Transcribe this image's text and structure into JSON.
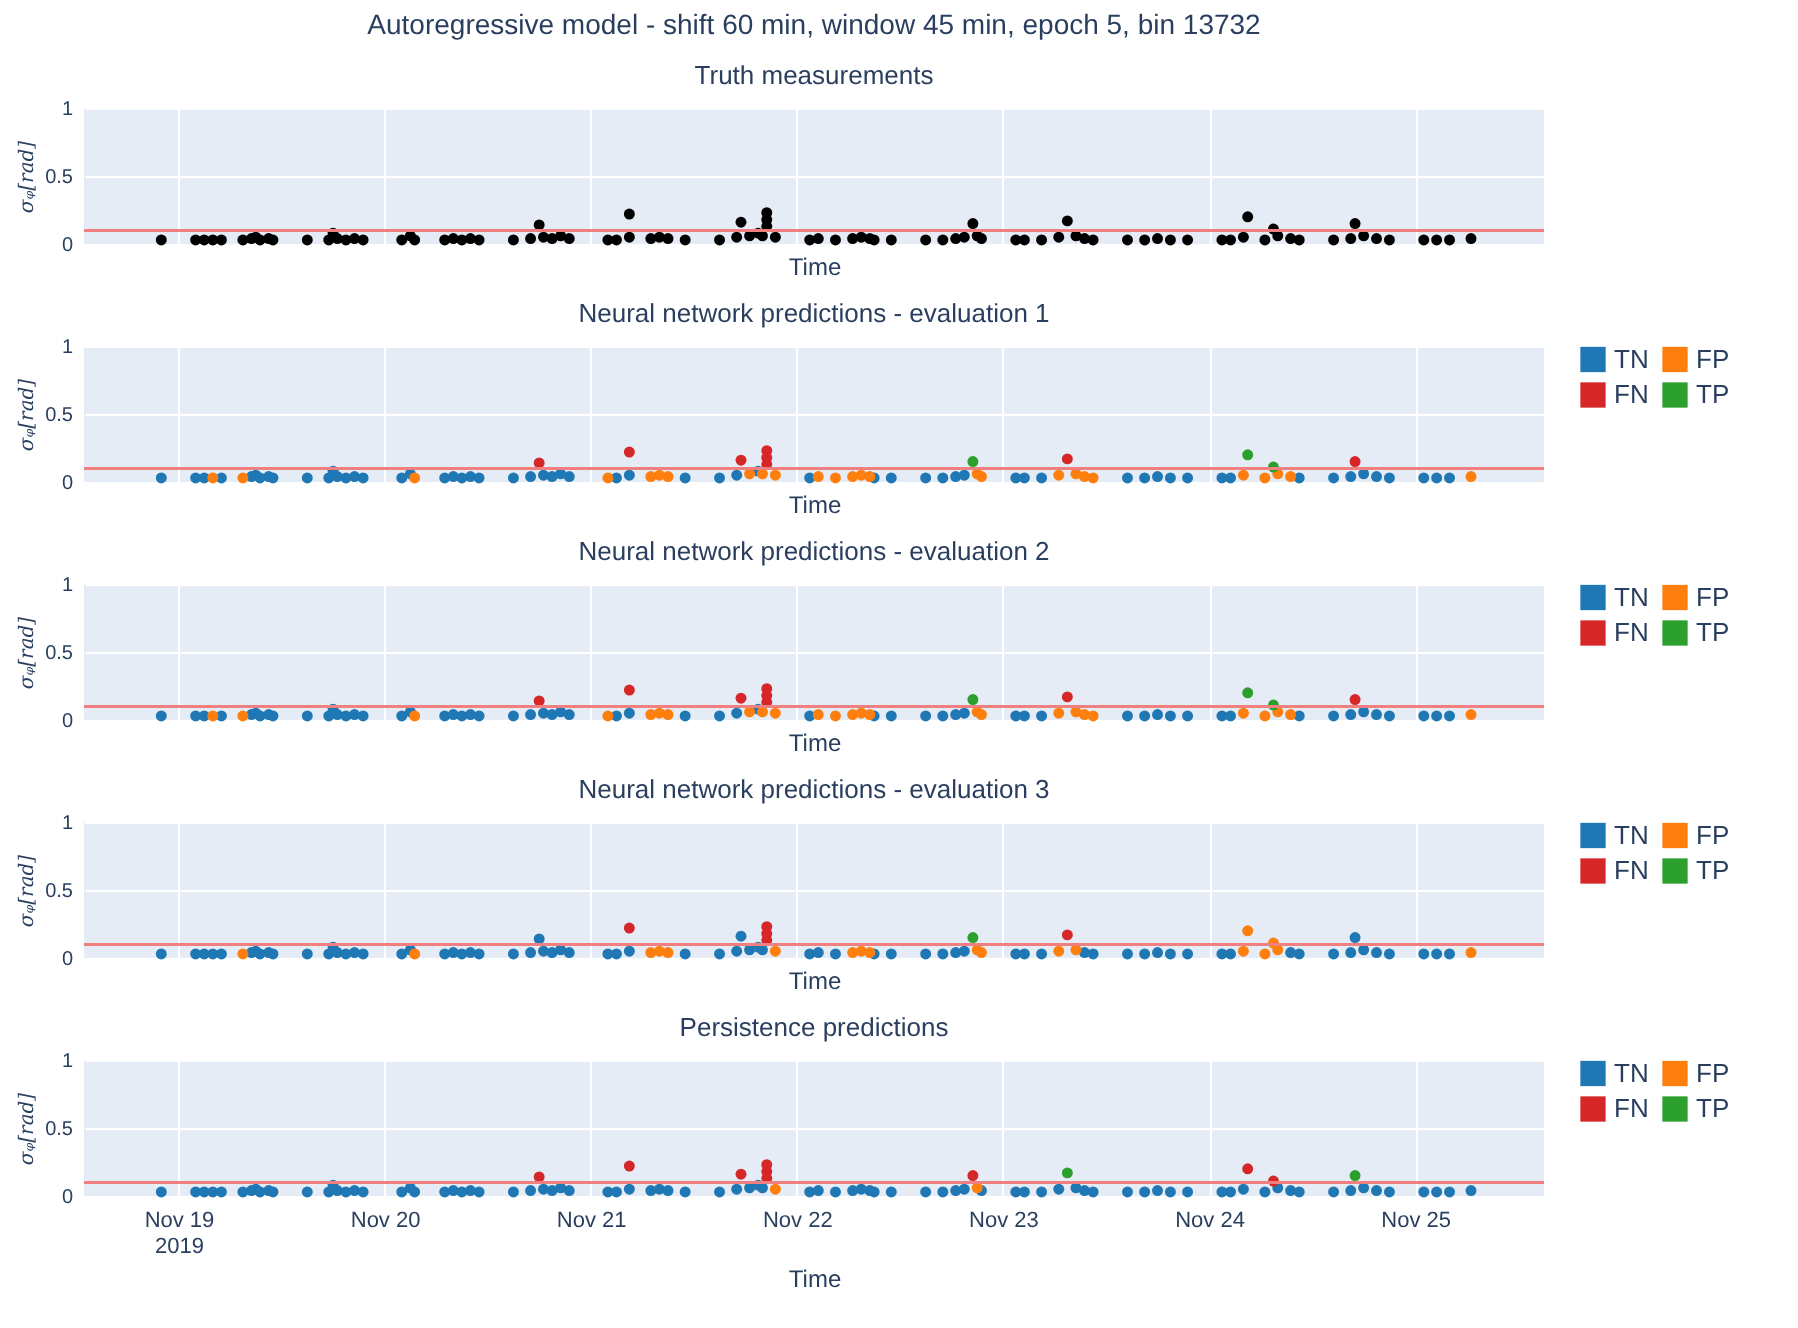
{
  "chart_data": [
    {
      "type": "scatter",
      "title": "Truth measurements",
      "annotations": [
        "Autoregressive model - shift 60 min, window 45 min, epoch 5, bin 13732"
      ],
      "xlabel": "Time",
      "ylabel": "σᵩ[rad]",
      "xlim": [
        "2019-11-18T13:00",
        "2019-11-25T15:00"
      ],
      "xticks": [
        {
          "value": "2019-11-19",
          "label": null
        },
        {
          "value": "2019-11-20",
          "label": null
        },
        {
          "value": "2019-11-21",
          "label": null
        },
        {
          "value": "2019-11-22",
          "label": null
        },
        {
          "value": "2019-11-23",
          "label": null
        },
        {
          "value": "2019-11-24",
          "label": null
        },
        {
          "value": "2019-11-25",
          "label": null
        }
      ],
      "ylim": [
        0,
        1
      ],
      "yticks": [
        0,
        0.5,
        1
      ],
      "grid": true,
      "marker": "circle",
      "tick_labels": "y",
      "ref_lines": [
        {
          "axis": "y",
          "value": 0.1,
          "color": "#f08080"
        }
      ],
      "series": [
        {
          "color": "#000000",
          "x": [
            "2019-11-18T22:00",
            "2019-11-19T02:00",
            "2019-11-19T03:00",
            "2019-11-19T04:00",
            "2019-11-19T05:00",
            "2019-11-19T07:30",
            "2019-11-19T08:30",
            "2019-11-19T09:00",
            "2019-11-19T09:30",
            "2019-11-19T10:30",
            "2019-11-19T11:00",
            "2019-11-19T15:00",
            "2019-11-19T17:30",
            "2019-11-19T18:00",
            "2019-11-19T18:30",
            "2019-11-19T19:30",
            "2019-11-19T20:30",
            "2019-11-19T21:30",
            "2019-11-20T02:00",
            "2019-11-20T03:00",
            "2019-11-20T03:30",
            "2019-11-20T07:00",
            "2019-11-20T08:00",
            "2019-11-20T09:00",
            "2019-11-20T10:00",
            "2019-11-20T11:00",
            "2019-11-20T15:00",
            "2019-11-20T17:00",
            "2019-11-20T18:00",
            "2019-11-20T18:30",
            "2019-11-20T19:30",
            "2019-11-20T20:30",
            "2019-11-20T21:30",
            "2019-11-21T02:00",
            "2019-11-21T03:00",
            "2019-11-21T04:30",
            "2019-11-21T04:30",
            "2019-11-21T07:00",
            "2019-11-21T08:00",
            "2019-11-21T09:00",
            "2019-11-21T11:00",
            "2019-11-21T15:00",
            "2019-11-21T17:00",
            "2019-11-21T17:30",
            "2019-11-21T18:30",
            "2019-11-21T19:30",
            "2019-11-21T20:00",
            "2019-11-21T20:30",
            "2019-11-21T20:30",
            "2019-11-21T20:30",
            "2019-11-21T21:30",
            "2019-11-22T01:30",
            "2019-11-22T02:30",
            "2019-11-22T04:30",
            "2019-11-22T06:30",
            "2019-11-22T07:30",
            "2019-11-22T08:30",
            "2019-11-22T09:00",
            "2019-11-22T11:00",
            "2019-11-22T15:00",
            "2019-11-22T17:00",
            "2019-11-22T18:30",
            "2019-11-22T19:30",
            "2019-11-22T20:30",
            "2019-11-22T21:00",
            "2019-11-22T21:30",
            "2019-11-23T01:30",
            "2019-11-23T02:30",
            "2019-11-23T04:30",
            "2019-11-23T06:30",
            "2019-11-23T07:30",
            "2019-11-23T08:30",
            "2019-11-23T09:30",
            "2019-11-23T10:30",
            "2019-11-23T14:30",
            "2019-11-23T16:30",
            "2019-11-23T18:00",
            "2019-11-23T19:30",
            "2019-11-23T21:30",
            "2019-11-24T01:30",
            "2019-11-24T02:30",
            "2019-11-24T04:00",
            "2019-11-24T04:30",
            "2019-11-24T06:30",
            "2019-11-24T07:30",
            "2019-11-24T08:00",
            "2019-11-24T09:30",
            "2019-11-24T10:30",
            "2019-11-24T14:30",
            "2019-11-24T16:30",
            "2019-11-24T17:00",
            "2019-11-24T18:00",
            "2019-11-24T19:30",
            "2019-11-24T21:00",
            "2019-11-25T01:00",
            "2019-11-25T02:30",
            "2019-11-25T04:00",
            "2019-11-25T06:30"
          ],
          "values": [
            0.03,
            0.03,
            0.03,
            0.03,
            0.03,
            0.03,
            0.04,
            0.05,
            0.03,
            0.04,
            0.03,
            0.03,
            0.03,
            0.08,
            0.04,
            0.03,
            0.04,
            0.03,
            0.03,
            0.06,
            0.03,
            0.03,
            0.04,
            0.03,
            0.04,
            0.03,
            0.03,
            0.04,
            0.14,
            0.05,
            0.04,
            0.06,
            0.04,
            0.03,
            0.03,
            0.22,
            0.05,
            0.04,
            0.05,
            0.04,
            0.03,
            0.03,
            0.05,
            0.16,
            0.06,
            0.08,
            0.06,
            0.13,
            0.18,
            0.23,
            0.05,
            0.03,
            0.04,
            0.03,
            0.04,
            0.05,
            0.04,
            0.03,
            0.03,
            0.03,
            0.03,
            0.04,
            0.05,
            0.15,
            0.06,
            0.04,
            0.03,
            0.03,
            0.03,
            0.05,
            0.17,
            0.06,
            0.04,
            0.03,
            0.03,
            0.03,
            0.04,
            0.03,
            0.03,
            0.03,
            0.03,
            0.05,
            0.2,
            0.03,
            0.11,
            0.06,
            0.04,
            0.03,
            0.03,
            0.04,
            0.15,
            0.06,
            0.04,
            0.03,
            0.03,
            0.03,
            0.03,
            0.04
          ]
        }
      ]
    },
    {
      "type": "scatter",
      "title": "Neural network predictions - evaluation 1",
      "xlabel": "Time",
      "ylabel": "σᵩ[rad]",
      "xlim": [
        "2019-11-18T13:00",
        "2019-11-25T15:00"
      ],
      "xticks": [
        {
          "value": "2019-11-19",
          "label": null
        },
        {
          "value": "2019-11-20",
          "label": null
        },
        {
          "value": "2019-11-21",
          "label": null
        },
        {
          "value": "2019-11-22",
          "label": null
        },
        {
          "value": "2019-11-23",
          "label": null
        },
        {
          "value": "2019-11-24",
          "label": null
        },
        {
          "value": "2019-11-25",
          "label": null
        }
      ],
      "ylim": [
        0,
        1
      ],
      "yticks": [
        0,
        0.5,
        1
      ],
      "grid": true,
      "marker": "circle",
      "tick_labels": "y",
      "legend": "top right",
      "ref_lines": [
        {
          "axis": "y",
          "value": 0.1,
          "color": "#f08080"
        }
      ],
      "series": [
        {
          "name": "TN",
          "color": "#1f77b4",
          "x": [
            "2019-11-18T22:00",
            "2019-11-19T02:00",
            "2019-11-19T03:00",
            "2019-11-19T05:00",
            "2019-11-19T08:30",
            "2019-11-19T09:00",
            "2019-11-19T09:30",
            "2019-11-19T10:30",
            "2019-11-19T11:00",
            "2019-11-19T15:00",
            "2019-11-19T17:30",
            "2019-11-19T18:00",
            "2019-11-19T18:30",
            "2019-11-19T19:30",
            "2019-11-19T20:30",
            "2019-11-19T21:30",
            "2019-11-20T02:00",
            "2019-11-20T03:00",
            "2019-11-20T07:00",
            "2019-11-20T08:00",
            "2019-11-20T09:00",
            "2019-11-20T10:00",
            "2019-11-20T11:00",
            "2019-11-20T15:00",
            "2019-11-20T17:00",
            "2019-11-20T18:30",
            "2019-11-20T19:30",
            "2019-11-20T20:30",
            "2019-11-20T21:30",
            "2019-11-21T03:00",
            "2019-11-21T04:30",
            "2019-11-21T11:00",
            "2019-11-21T15:00",
            "2019-11-21T17:00",
            "2019-11-21T19:30",
            "2019-11-22T01:30",
            "2019-11-22T09:00",
            "2019-11-22T11:00",
            "2019-11-22T15:00",
            "2019-11-22T17:00",
            "2019-11-22T18:30",
            "2019-11-22T19:30",
            "2019-11-23T01:30",
            "2019-11-23T02:30",
            "2019-11-23T04:30",
            "2019-11-23T14:30",
            "2019-11-23T16:30",
            "2019-11-23T18:00",
            "2019-11-23T19:30",
            "2019-11-23T21:30",
            "2019-11-24T01:30",
            "2019-11-24T02:30",
            "2019-11-24T10:30",
            "2019-11-24T14:30",
            "2019-11-24T16:30",
            "2019-11-24T18:00",
            "2019-11-24T19:30",
            "2019-11-24T21:00",
            "2019-11-25T01:00",
            "2019-11-25T02:30",
            "2019-11-25T04:00"
          ],
          "values": [
            0.03,
            0.03,
            0.03,
            0.03,
            0.04,
            0.05,
            0.03,
            0.04,
            0.03,
            0.03,
            0.03,
            0.08,
            0.04,
            0.03,
            0.04,
            0.03,
            0.03,
            0.06,
            0.03,
            0.04,
            0.03,
            0.04,
            0.03,
            0.03,
            0.04,
            0.05,
            0.04,
            0.06,
            0.04,
            0.03,
            0.05,
            0.03,
            0.03,
            0.05,
            0.08,
            0.03,
            0.03,
            0.03,
            0.03,
            0.03,
            0.04,
            0.05,
            0.03,
            0.03,
            0.03,
            0.03,
            0.03,
            0.04,
            0.03,
            0.03,
            0.03,
            0.03,
            0.03,
            0.03,
            0.04,
            0.06,
            0.04,
            0.03,
            0.03,
            0.03,
            0.03
          ]
        },
        {
          "name": "FP",
          "color": "#ff7f0e",
          "x": [
            "2019-11-19T04:00",
            "2019-11-19T07:30",
            "2019-11-20T03:30",
            "2019-11-21T02:00",
            "2019-11-21T07:00",
            "2019-11-21T08:00",
            "2019-11-21T09:00",
            "2019-11-21T18:30",
            "2019-11-21T20:00",
            "2019-11-21T21:30",
            "2019-11-22T02:30",
            "2019-11-22T04:30",
            "2019-11-22T06:30",
            "2019-11-22T07:30",
            "2019-11-22T08:30",
            "2019-11-22T21:00",
            "2019-11-22T21:30",
            "2019-11-23T06:30",
            "2019-11-23T08:30",
            "2019-11-23T09:30",
            "2019-11-23T10:30",
            "2019-11-24T04:00",
            "2019-11-24T06:30",
            "2019-11-24T08:00",
            "2019-11-24T09:30",
            "2019-11-25T06:30"
          ],
          "values": [
            0.03,
            0.03,
            0.03,
            0.03,
            0.04,
            0.05,
            0.04,
            0.06,
            0.06,
            0.05,
            0.04,
            0.03,
            0.04,
            0.05,
            0.04,
            0.06,
            0.04,
            0.05,
            0.06,
            0.04,
            0.03,
            0.05,
            0.03,
            0.06,
            0.04,
            0.04
          ]
        },
        {
          "name": "FN",
          "color": "#d62728",
          "x": [
            "2019-11-20T18:00",
            "2019-11-21T04:30",
            "2019-11-21T17:30",
            "2019-11-21T20:30",
            "2019-11-21T20:30",
            "2019-11-21T20:30",
            "2019-11-23T07:30",
            "2019-11-24T17:00"
          ],
          "values": [
            0.14,
            0.22,
            0.16,
            0.13,
            0.18,
            0.23,
            0.17,
            0.15
          ]
        },
        {
          "name": "TP",
          "color": "#2ca02c",
          "x": [
            "2019-11-22T20:30",
            "2019-11-24T04:30",
            "2019-11-24T07:30"
          ],
          "values": [
            0.15,
            0.2,
            0.11
          ]
        }
      ]
    },
    {
      "type": "scatter",
      "title": "Neural network predictions - evaluation 2",
      "xlabel": "Time",
      "ylabel": "σᵩ[rad]",
      "xlim": [
        "2019-11-18T13:00",
        "2019-11-25T15:00"
      ],
      "xticks": [
        {
          "value": "2019-11-19",
          "label": null
        },
        {
          "value": "2019-11-20",
          "label": null
        },
        {
          "value": "2019-11-21",
          "label": null
        },
        {
          "value": "2019-11-22",
          "label": null
        },
        {
          "value": "2019-11-23",
          "label": null
        },
        {
          "value": "2019-11-24",
          "label": null
        },
        {
          "value": "2019-11-25",
          "label": null
        }
      ],
      "ylim": [
        0,
        1
      ],
      "yticks": [
        0,
        0.5,
        1
      ],
      "grid": true,
      "marker": "circle",
      "tick_labels": "y",
      "legend": "top right",
      "ref_lines": [
        {
          "axis": "y",
          "value": 0.1,
          "color": "#f08080"
        }
      ],
      "series": [
        {
          "name": "TN",
          "color": "#1f77b4",
          "x": [
            "2019-11-18T22:00",
            "2019-11-19T02:00",
            "2019-11-19T03:00",
            "2019-11-19T05:00",
            "2019-11-19T08:30",
            "2019-11-19T09:00",
            "2019-11-19T09:30",
            "2019-11-19T10:30",
            "2019-11-19T11:00",
            "2019-11-19T15:00",
            "2019-11-19T17:30",
            "2019-11-19T18:00",
            "2019-11-19T18:30",
            "2019-11-19T19:30",
            "2019-11-19T20:30",
            "2019-11-19T21:30",
            "2019-11-20T02:00",
            "2019-11-20T03:00",
            "2019-11-20T07:00",
            "2019-11-20T08:00",
            "2019-11-20T09:00",
            "2019-11-20T10:00",
            "2019-11-20T11:00",
            "2019-11-20T15:00",
            "2019-11-20T17:00",
            "2019-11-20T18:30",
            "2019-11-20T19:30",
            "2019-11-20T20:30",
            "2019-11-20T21:30",
            "2019-11-21T03:00",
            "2019-11-21T04:30",
            "2019-11-21T11:00",
            "2019-11-21T15:00",
            "2019-11-21T17:00",
            "2019-11-21T19:30",
            "2019-11-22T01:30",
            "2019-11-22T09:00",
            "2019-11-22T11:00",
            "2019-11-22T15:00",
            "2019-11-22T17:00",
            "2019-11-22T18:30",
            "2019-11-22T19:30",
            "2019-11-23T01:30",
            "2019-11-23T02:30",
            "2019-11-23T04:30",
            "2019-11-23T14:30",
            "2019-11-23T16:30",
            "2019-11-23T18:00",
            "2019-11-23T19:30",
            "2019-11-23T21:30",
            "2019-11-24T01:30",
            "2019-11-24T02:30",
            "2019-11-24T10:30",
            "2019-11-24T14:30",
            "2019-11-24T16:30",
            "2019-11-24T18:00",
            "2019-11-24T19:30",
            "2019-11-24T21:00",
            "2019-11-25T01:00",
            "2019-11-25T02:30",
            "2019-11-25T04:00"
          ],
          "values": [
            0.03,
            0.03,
            0.03,
            0.03,
            0.04,
            0.05,
            0.03,
            0.04,
            0.03,
            0.03,
            0.03,
            0.08,
            0.04,
            0.03,
            0.04,
            0.03,
            0.03,
            0.06,
            0.03,
            0.04,
            0.03,
            0.04,
            0.03,
            0.03,
            0.04,
            0.05,
            0.04,
            0.06,
            0.04,
            0.03,
            0.05,
            0.03,
            0.03,
            0.05,
            0.08,
            0.03,
            0.03,
            0.03,
            0.03,
            0.03,
            0.04,
            0.05,
            0.03,
            0.03,
            0.03,
            0.03,
            0.03,
            0.04,
            0.03,
            0.03,
            0.03,
            0.03,
            0.03,
            0.03,
            0.04,
            0.06,
            0.04,
            0.03,
            0.03,
            0.03,
            0.03
          ]
        },
        {
          "name": "FP",
          "color": "#ff7f0e",
          "x": [
            "2019-11-19T04:00",
            "2019-11-19T07:30",
            "2019-11-20T03:30",
            "2019-11-21T02:00",
            "2019-11-21T07:00",
            "2019-11-21T08:00",
            "2019-11-21T09:00",
            "2019-11-21T18:30",
            "2019-11-21T20:00",
            "2019-11-21T21:30",
            "2019-11-22T02:30",
            "2019-11-22T04:30",
            "2019-11-22T06:30",
            "2019-11-22T07:30",
            "2019-11-22T08:30",
            "2019-11-22T21:00",
            "2019-11-22T21:30",
            "2019-11-23T06:30",
            "2019-11-23T08:30",
            "2019-11-23T09:30",
            "2019-11-23T10:30",
            "2019-11-24T04:00",
            "2019-11-24T06:30",
            "2019-11-24T08:00",
            "2019-11-24T09:30",
            "2019-11-25T06:30"
          ],
          "values": [
            0.03,
            0.03,
            0.03,
            0.03,
            0.04,
            0.05,
            0.04,
            0.06,
            0.06,
            0.05,
            0.04,
            0.03,
            0.04,
            0.05,
            0.04,
            0.06,
            0.04,
            0.05,
            0.06,
            0.04,
            0.03,
            0.05,
            0.03,
            0.06,
            0.04,
            0.04
          ]
        },
        {
          "name": "FN",
          "color": "#d62728",
          "x": [
            "2019-11-20T18:00",
            "2019-11-21T04:30",
            "2019-11-21T17:30",
            "2019-11-21T20:30",
            "2019-11-21T20:30",
            "2019-11-21T20:30",
            "2019-11-23T07:30",
            "2019-11-24T17:00"
          ],
          "values": [
            0.14,
            0.22,
            0.16,
            0.13,
            0.18,
            0.23,
            0.17,
            0.15
          ]
        },
        {
          "name": "TP",
          "color": "#2ca02c",
          "x": [
            "2019-11-22T20:30",
            "2019-11-24T04:30",
            "2019-11-24T07:30"
          ],
          "values": [
            0.15,
            0.2,
            0.11
          ]
        }
      ]
    },
    {
      "type": "scatter",
      "title": "Neural network predictions - evaluation 3",
      "xlabel": "Time",
      "ylabel": "σᵩ[rad]",
      "xlim": [
        "2019-11-18T13:00",
        "2019-11-25T15:00"
      ],
      "xticks": [
        {
          "value": "2019-11-19",
          "label": null
        },
        {
          "value": "2019-11-20",
          "label": null
        },
        {
          "value": "2019-11-21",
          "label": null
        },
        {
          "value": "2019-11-22",
          "label": null
        },
        {
          "value": "2019-11-23",
          "label": null
        },
        {
          "value": "2019-11-24",
          "label": null
        },
        {
          "value": "2019-11-25",
          "label": null
        }
      ],
      "ylim": [
        0,
        1
      ],
      "yticks": [
        0,
        0.5,
        1
      ],
      "grid": true,
      "marker": "circle",
      "tick_labels": "y",
      "legend": "top right",
      "ref_lines": [
        {
          "axis": "y",
          "value": 0.1,
          "color": "#f08080"
        }
      ],
      "series": [
        {
          "name": "TN",
          "color": "#1f77b4",
          "x": [
            "2019-11-18T22:00",
            "2019-11-19T02:00",
            "2019-11-19T03:00",
            "2019-11-19T04:00",
            "2019-11-19T05:00",
            "2019-11-19T08:30",
            "2019-11-19T09:00",
            "2019-11-19T09:30",
            "2019-11-19T10:30",
            "2019-11-19T11:00",
            "2019-11-19T15:00",
            "2019-11-19T17:30",
            "2019-11-19T18:00",
            "2019-11-19T18:30",
            "2019-11-19T19:30",
            "2019-11-19T20:30",
            "2019-11-19T21:30",
            "2019-11-20T02:00",
            "2019-11-20T03:00",
            "2019-11-20T07:00",
            "2019-11-20T08:00",
            "2019-11-20T09:00",
            "2019-11-20T10:00",
            "2019-11-20T11:00",
            "2019-11-20T15:00",
            "2019-11-20T17:00",
            "2019-11-20T18:00",
            "2019-11-20T18:30",
            "2019-11-20T19:30",
            "2019-11-20T20:30",
            "2019-11-20T21:30",
            "2019-11-21T02:00",
            "2019-11-21T03:00",
            "2019-11-21T04:30",
            "2019-11-21T11:00",
            "2019-11-21T15:00",
            "2019-11-21T17:00",
            "2019-11-21T17:30",
            "2019-11-21T18:30",
            "2019-11-21T19:30",
            "2019-11-21T20:00",
            "2019-11-22T01:30",
            "2019-11-22T02:30",
            "2019-11-22T04:30",
            "2019-11-22T09:00",
            "2019-11-22T11:00",
            "2019-11-22T15:00",
            "2019-11-22T17:00",
            "2019-11-22T18:30",
            "2019-11-22T19:30",
            "2019-11-23T01:30",
            "2019-11-23T02:30",
            "2019-11-23T04:30",
            "2019-11-23T09:30",
            "2019-11-23T10:30",
            "2019-11-23T14:30",
            "2019-11-23T16:30",
            "2019-11-23T18:00",
            "2019-11-23T19:30",
            "2019-11-23T21:30",
            "2019-11-24T01:30",
            "2019-11-24T02:30",
            "2019-11-24T09:30",
            "2019-11-24T10:30",
            "2019-11-24T14:30",
            "2019-11-24T16:30",
            "2019-11-24T17:00",
            "2019-11-24T18:00",
            "2019-11-24T19:30",
            "2019-11-24T21:00",
            "2019-11-25T01:00",
            "2019-11-25T02:30",
            "2019-11-25T04:00"
          ],
          "values": [
            0.03,
            0.03,
            0.03,
            0.03,
            0.03,
            0.04,
            0.05,
            0.03,
            0.04,
            0.03,
            0.03,
            0.03,
            0.08,
            0.04,
            0.03,
            0.04,
            0.03,
            0.03,
            0.06,
            0.03,
            0.04,
            0.03,
            0.04,
            0.03,
            0.03,
            0.04,
            0.14,
            0.05,
            0.04,
            0.06,
            0.04,
            0.03,
            0.03,
            0.05,
            0.03,
            0.03,
            0.05,
            0.16,
            0.06,
            0.08,
            0.06,
            0.03,
            0.04,
            0.03,
            0.03,
            0.03,
            0.03,
            0.03,
            0.04,
            0.05,
            0.03,
            0.03,
            0.03,
            0.04,
            0.03,
            0.03,
            0.03,
            0.04,
            0.03,
            0.03,
            0.03,
            0.03,
            0.04,
            0.03,
            0.03,
            0.04,
            0.15,
            0.06,
            0.04,
            0.03,
            0.03,
            0.03,
            0.03
          ]
        },
        {
          "name": "FP",
          "color": "#ff7f0e",
          "x": [
            "2019-11-19T07:30",
            "2019-11-20T03:30",
            "2019-11-21T07:00",
            "2019-11-21T08:00",
            "2019-11-21T09:00",
            "2019-11-21T21:30",
            "2019-11-22T06:30",
            "2019-11-22T07:30",
            "2019-11-22T08:30",
            "2019-11-22T21:00",
            "2019-11-22T21:30",
            "2019-11-23T06:30",
            "2019-11-23T08:30",
            "2019-11-24T04:00",
            "2019-11-24T04:30",
            "2019-11-24T06:30",
            "2019-11-24T07:30",
            "2019-11-24T08:00",
            "2019-11-25T06:30"
          ],
          "values": [
            0.03,
            0.03,
            0.04,
            0.05,
            0.04,
            0.05,
            0.04,
            0.05,
            0.04,
            0.06,
            0.04,
            0.05,
            0.06,
            0.05,
            0.2,
            0.03,
            0.11,
            0.06,
            0.04
          ]
        },
        {
          "name": "FN",
          "color": "#d62728",
          "x": [
            "2019-11-21T04:30",
            "2019-11-21T20:30",
            "2019-11-21T20:30",
            "2019-11-21T20:30",
            "2019-11-23T07:30"
          ],
          "values": [
            0.22,
            0.13,
            0.18,
            0.23,
            0.17
          ]
        },
        {
          "name": "TP",
          "color": "#2ca02c",
          "x": [
            "2019-11-22T20:30"
          ],
          "values": [
            0.15
          ]
        }
      ]
    },
    {
      "type": "scatter",
      "title": "Persistence predictions",
      "xlabel": "Time",
      "ylabel": "σᵩ[rad]",
      "xlim": [
        "2019-11-18T13:00",
        "2019-11-25T15:00"
      ],
      "xticks": [
        {
          "value": "2019-11-19",
          "label": "Nov 19\n2019"
        },
        {
          "value": "2019-11-20",
          "label": "Nov 20"
        },
        {
          "value": "2019-11-21",
          "label": "Nov 21"
        },
        {
          "value": "2019-11-22",
          "label": "Nov 22"
        },
        {
          "value": "2019-11-23",
          "label": "Nov 23"
        },
        {
          "value": "2019-11-24",
          "label": "Nov 24"
        },
        {
          "value": "2019-11-25",
          "label": "Nov 25"
        }
      ],
      "ylim": [
        0,
        1
      ],
      "yticks": [
        0,
        0.5,
        1
      ],
      "grid": true,
      "marker": "circle",
      "legend": "top right",
      "ref_lines": [
        {
          "axis": "y",
          "value": 0.1,
          "color": "#f08080"
        }
      ],
      "series": [
        {
          "name": "TN",
          "color": "#1f77b4",
          "x": [
            "2019-11-18T22:00",
            "2019-11-19T02:00",
            "2019-11-19T03:00",
            "2019-11-19T04:00",
            "2019-11-19T05:00",
            "2019-11-19T07:30",
            "2019-11-19T08:30",
            "2019-11-19T09:00",
            "2019-11-19T09:30",
            "2019-11-19T10:30",
            "2019-11-19T11:00",
            "2019-11-19T15:00",
            "2019-11-19T17:30",
            "2019-11-19T18:00",
            "2019-11-19T18:30",
            "2019-11-19T19:30",
            "2019-11-19T20:30",
            "2019-11-19T21:30",
            "2019-11-20T02:00",
            "2019-11-20T03:00",
            "2019-11-20T03:30",
            "2019-11-20T07:00",
            "2019-11-20T08:00",
            "2019-11-20T09:00",
            "2019-11-20T10:00",
            "2019-11-20T11:00",
            "2019-11-20T15:00",
            "2019-11-20T17:00",
            "2019-11-20T18:30",
            "2019-11-20T19:30",
            "2019-11-20T20:30",
            "2019-11-20T21:30",
            "2019-11-21T02:00",
            "2019-11-21T03:00",
            "2019-11-21T04:30",
            "2019-11-21T07:00",
            "2019-11-21T08:00",
            "2019-11-21T09:00",
            "2019-11-21T11:00",
            "2019-11-21T15:00",
            "2019-11-21T17:00",
            "2019-11-21T18:30",
            "2019-11-21T19:30",
            "2019-11-21T20:00",
            "2019-11-22T01:30",
            "2019-11-22T02:30",
            "2019-11-22T04:30",
            "2019-11-22T06:30",
            "2019-11-22T07:30",
            "2019-11-22T08:30",
            "2019-11-22T09:00",
            "2019-11-22T11:00",
            "2019-11-22T15:00",
            "2019-11-22T17:00",
            "2019-11-22T18:30",
            "2019-11-22T19:30",
            "2019-11-22T21:30",
            "2019-11-23T01:30",
            "2019-11-23T02:30",
            "2019-11-23T04:30",
            "2019-11-23T06:30",
            "2019-11-23T08:30",
            "2019-11-23T09:30",
            "2019-11-23T10:30",
            "2019-11-23T14:30",
            "2019-11-23T16:30",
            "2019-11-23T18:00",
            "2019-11-23T19:30",
            "2019-11-23T21:30",
            "2019-11-24T01:30",
            "2019-11-24T02:30",
            "2019-11-24T04:00",
            "2019-11-24T06:30",
            "2019-11-24T08:00",
            "2019-11-24T09:30",
            "2019-11-24T10:30",
            "2019-11-24T14:30",
            "2019-11-24T16:30",
            "2019-11-24T18:00",
            "2019-11-24T19:30",
            "2019-11-24T21:00",
            "2019-11-25T01:00",
            "2019-11-25T02:30",
            "2019-11-25T04:00",
            "2019-11-25T06:30"
          ],
          "values": [
            0.03,
            0.03,
            0.03,
            0.03,
            0.03,
            0.03,
            0.04,
            0.05,
            0.03,
            0.04,
            0.03,
            0.03,
            0.03,
            0.08,
            0.04,
            0.03,
            0.04,
            0.03,
            0.03,
            0.06,
            0.03,
            0.03,
            0.04,
            0.03,
            0.04,
            0.03,
            0.03,
            0.04,
            0.05,
            0.04,
            0.06,
            0.04,
            0.03,
            0.03,
            0.05,
            0.04,
            0.05,
            0.04,
            0.03,
            0.03,
            0.05,
            0.06,
            0.08,
            0.06,
            0.03,
            0.04,
            0.03,
            0.04,
            0.05,
            0.04,
            0.03,
            0.03,
            0.03,
            0.03,
            0.04,
            0.05,
            0.04,
            0.03,
            0.03,
            0.03,
            0.05,
            0.06,
            0.04,
            0.03,
            0.03,
            0.03,
            0.04,
            0.03,
            0.03,
            0.03,
            0.03,
            0.05,
            0.03,
            0.06,
            0.04,
            0.03,
            0.03,
            0.04,
            0.06,
            0.04,
            0.03,
            0.03,
            0.03,
            0.03,
            0.04
          ]
        },
        {
          "name": "FP",
          "color": "#ff7f0e",
          "x": [
            "2019-11-21T21:30",
            "2019-11-22T21:00"
          ],
          "values": [
            0.05,
            0.06
          ]
        },
        {
          "name": "FN",
          "color": "#d62728",
          "x": [
            "2019-11-20T18:00",
            "2019-11-21T04:30",
            "2019-11-21T17:30",
            "2019-11-21T20:30",
            "2019-11-21T20:30",
            "2019-11-21T20:30",
            "2019-11-22T20:30",
            "2019-11-24T04:30",
            "2019-11-24T07:30"
          ],
          "values": [
            0.14,
            0.22,
            0.16,
            0.13,
            0.18,
            0.23,
            0.15,
            0.2,
            0.11
          ]
        },
        {
          "name": "TP",
          "color": "#2ca02c",
          "x": [
            "2019-11-23T07:30",
            "2019-11-24T17:00"
          ],
          "values": [
            0.17,
            0.15
          ]
        }
      ]
    }
  ]
}
